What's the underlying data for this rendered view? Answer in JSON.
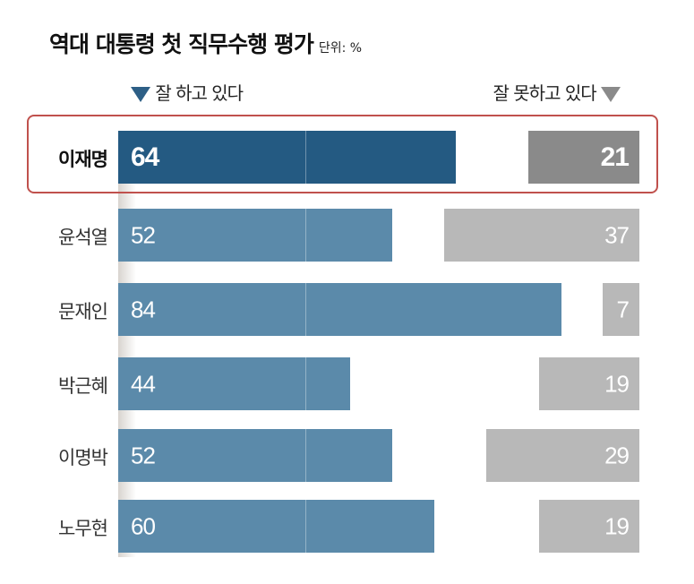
{
  "chart_data": {
    "type": "bar",
    "title": "역대 대통령 첫 직무수행 평가",
    "unit": "단위: %",
    "categories": [
      "이재명",
      "윤석열",
      "문재인",
      "박근혜",
      "이명박",
      "노무현"
    ],
    "highlight": "이재명",
    "series": [
      {
        "name": "잘 하고 있다",
        "values": [
          64,
          52,
          84,
          44,
          52,
          60
        ],
        "color": "#5b8aaa",
        "highlight_color": "#245a82"
      },
      {
        "name": "잘 못하고 있다",
        "values": [
          21,
          37,
          7,
          19,
          29,
          19
        ],
        "color": "#b8b8b8",
        "highlight_color": "#8a8a8a"
      }
    ],
    "legend_marker_colors": [
      "#2d5f86",
      "#8a8a8a"
    ],
    "highlight_border_color": "#c0514d"
  }
}
